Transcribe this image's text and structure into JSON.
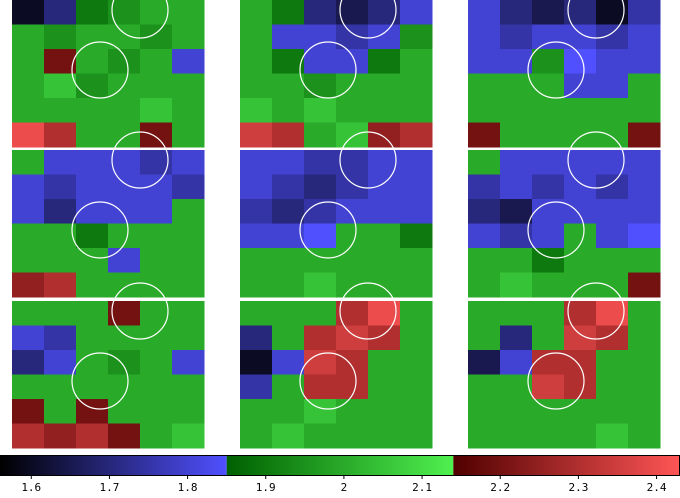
{
  "chart_data": {
    "type": "heatmap",
    "panels": [
      {
        "values": [
          [
            1.6,
            1.7,
            1.9,
            1.95,
            2.0,
            2.0
          ],
          [
            2.0,
            1.95,
            2.0,
            2.0,
            1.95,
            2.0
          ],
          [
            2.0,
            2.2,
            2.0,
            1.95,
            2.0,
            1.8
          ],
          [
            2.0,
            2.05,
            1.95,
            2.0,
            2.0,
            2.0
          ],
          [
            2.0,
            2.0,
            2.0,
            2.0,
            2.05,
            2.0
          ],
          [
            2.4,
            2.3,
            2.0,
            2.0,
            2.2,
            2.0
          ]
        ]
      },
      {
        "values": [
          [
            2.0,
            1.9,
            1.7,
            1.65,
            1.7,
            1.8
          ],
          [
            2.0,
            1.8,
            1.8,
            1.75,
            1.8,
            1.95
          ],
          [
            2.0,
            1.9,
            1.8,
            1.8,
            1.9,
            2.0
          ],
          [
            2.0,
            2.0,
            1.95,
            2.0,
            2.0,
            2.0
          ],
          [
            2.05,
            2.0,
            2.05,
            2.0,
            2.0,
            2.0
          ],
          [
            2.35,
            2.3,
            2.0,
            2.05,
            2.25,
            2.3
          ]
        ]
      },
      {
        "values": [
          [
            1.8,
            1.7,
            1.65,
            1.7,
            1.6,
            1.75
          ],
          [
            1.8,
            1.75,
            1.8,
            1.8,
            1.75,
            1.8
          ],
          [
            1.8,
            1.8,
            1.95,
            1.85,
            1.8,
            1.8
          ],
          [
            2.0,
            2.0,
            2.0,
            1.8,
            1.8,
            2.0
          ],
          [
            2.0,
            2.0,
            2.0,
            2.0,
            2.0,
            2.0
          ],
          [
            2.2,
            2.0,
            2.0,
            2.0,
            2.0,
            2.2
          ]
        ]
      },
      {
        "values": [
          [
            2.0,
            1.8,
            1.8,
            1.8,
            1.75,
            1.8
          ],
          [
            1.8,
            1.75,
            1.8,
            1.8,
            1.8,
            1.75
          ],
          [
            1.8,
            1.7,
            1.8,
            1.8,
            1.8,
            2.0
          ],
          [
            2.0,
            2.0,
            1.9,
            2.0,
            2.0,
            2.0
          ],
          [
            2.0,
            2.0,
            2.0,
            1.8,
            2.0,
            2.0
          ],
          [
            2.25,
            2.3,
            2.0,
            2.0,
            2.0,
            2.0
          ]
        ]
      },
      {
        "values": [
          [
            1.8,
            1.8,
            1.75,
            1.75,
            1.8,
            1.8
          ],
          [
            1.8,
            1.75,
            1.7,
            1.75,
            1.8,
            1.8
          ],
          [
            1.75,
            1.7,
            1.75,
            1.8,
            1.8,
            1.8
          ],
          [
            1.8,
            1.8,
            1.85,
            2.0,
            2.0,
            1.9
          ],
          [
            2.0,
            2.0,
            2.0,
            2.0,
            2.0,
            2.0
          ],
          [
            2.0,
            2.0,
            2.05,
            2.0,
            2.0,
            2.0
          ]
        ]
      },
      {
        "values": [
          [
            2.0,
            1.8,
            1.8,
            1.8,
            1.8,
            1.8
          ],
          [
            1.75,
            1.8,
            1.75,
            1.8,
            1.75,
            1.8
          ],
          [
            1.7,
            1.65,
            1.8,
            1.8,
            1.8,
            1.8
          ],
          [
            1.8,
            1.75,
            1.8,
            2.0,
            1.8,
            1.85
          ],
          [
            2.0,
            2.0,
            1.9,
            2.0,
            2.0,
            2.0
          ],
          [
            2.0,
            2.05,
            2.0,
            2.0,
            2.0,
            2.2
          ]
        ]
      },
      {
        "values": [
          [
            2.0,
            2.0,
            2.0,
            2.2,
            2.0,
            2.0
          ],
          [
            1.8,
            1.75,
            2.0,
            2.0,
            2.0,
            2.0
          ],
          [
            1.7,
            1.8,
            2.0,
            1.95,
            2.0,
            1.8
          ],
          [
            2.0,
            2.0,
            2.0,
            2.0,
            2.0,
            2.0
          ],
          [
            2.2,
            2.0,
            2.2,
            2.0,
            2.0,
            2.0
          ],
          [
            2.3,
            2.25,
            2.3,
            2.2,
            2.0,
            2.05
          ]
        ]
      },
      {
        "values": [
          [
            2.0,
            2.0,
            2.0,
            2.3,
            2.4,
            2.0
          ],
          [
            1.7,
            2.0,
            2.3,
            2.35,
            2.3,
            2.0
          ],
          [
            1.6,
            1.8,
            2.35,
            2.3,
            2.0,
            2.0
          ],
          [
            1.75,
            2.0,
            2.3,
            2.3,
            2.0,
            2.0
          ],
          [
            2.0,
            2.0,
            2.05,
            2.0,
            2.0,
            2.0
          ],
          [
            2.0,
            2.05,
            2.0,
            2.0,
            2.0,
            2.0
          ]
        ]
      },
      {
        "values": [
          [
            2.0,
            2.0,
            2.0,
            2.3,
            2.4,
            2.0
          ],
          [
            2.0,
            1.7,
            2.0,
            2.35,
            2.3,
            2.0
          ],
          [
            1.65,
            1.8,
            2.3,
            2.3,
            2.0,
            2.0
          ],
          [
            2.0,
            2.0,
            2.35,
            2.3,
            2.0,
            2.0
          ],
          [
            2.0,
            2.0,
            2.0,
            2.0,
            2.0,
            2.0
          ],
          [
            2.0,
            2.0,
            2.0,
            2.0,
            2.05,
            2.0
          ]
        ]
      }
    ],
    "clim": [
      1.56,
      2.43
    ],
    "colormap": [
      {
        "from": 1.56,
        "to": 1.85,
        "colors": [
          "#000000",
          "#5050ff"
        ]
      },
      {
        "from": 1.85,
        "to": 2.14,
        "colors": [
          "#006000",
          "#50f050"
        ]
      },
      {
        "from": 2.14,
        "to": 2.43,
        "colors": [
          "#500000",
          "#ff5555"
        ]
      }
    ],
    "ticks": [
      1.6,
      1.7,
      1.8,
      1.9,
      2,
      2.1,
      2.2,
      2.3,
      2.4
    ]
  }
}
